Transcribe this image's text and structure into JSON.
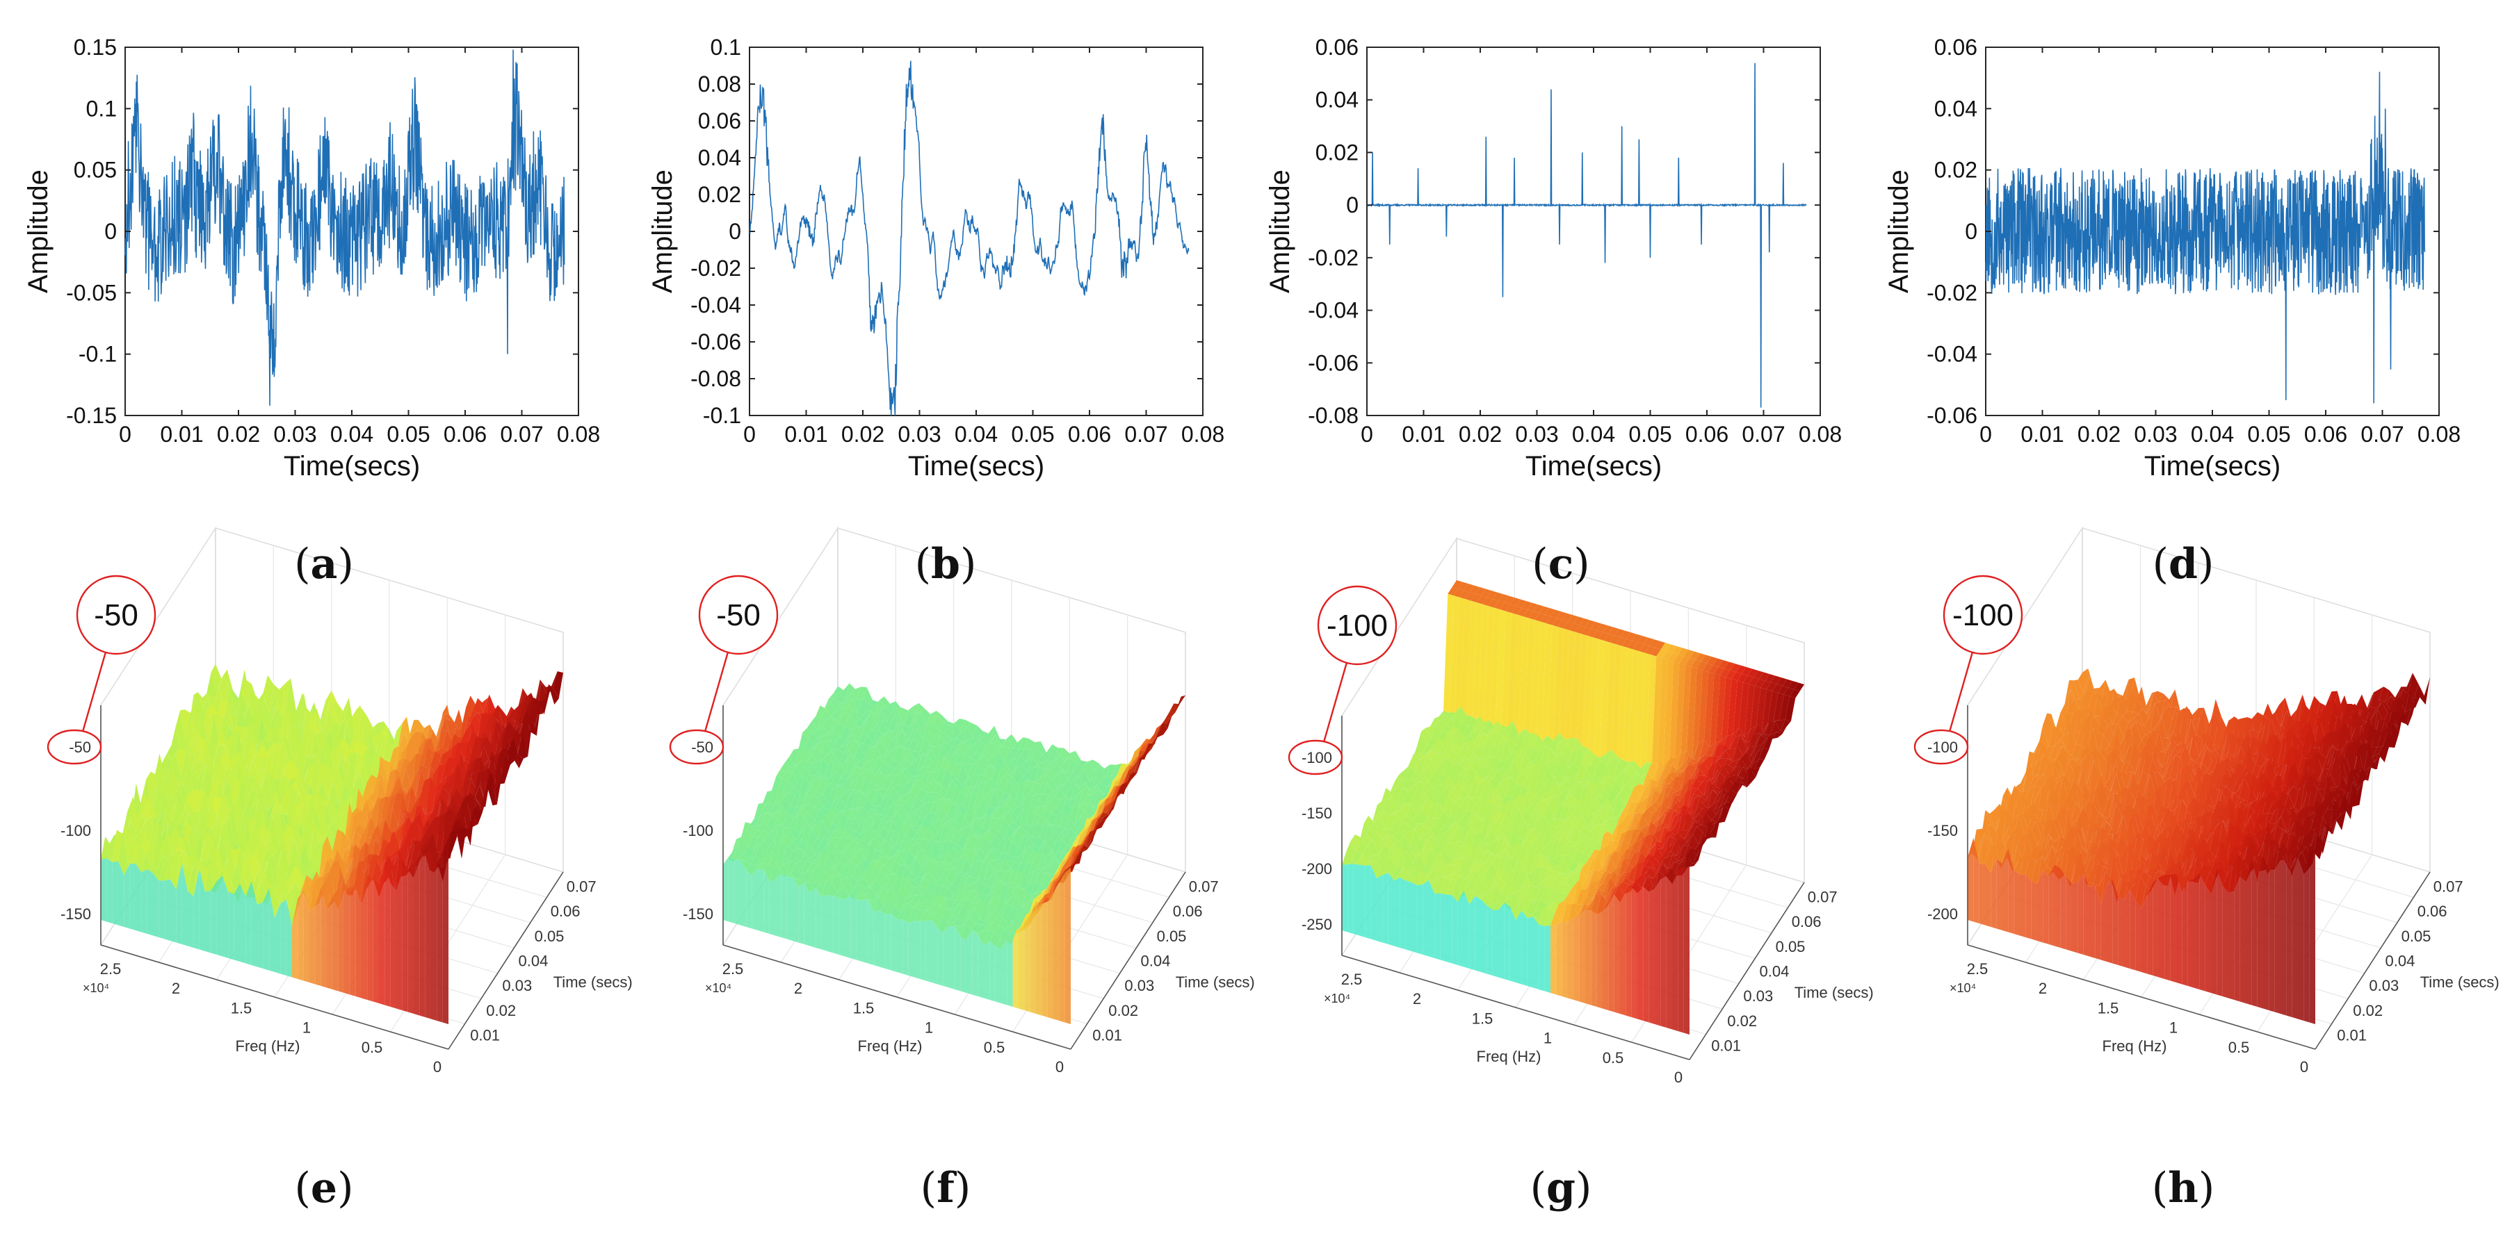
{
  "figure": {
    "panel_labels": [
      "(a)",
      "(b)",
      "(c)",
      "(d)",
      "(e)",
      "(f)",
      "(g)",
      "(h)"
    ],
    "line_color": "#1f6fb6",
    "callout_color": "#e02020"
  },
  "chart_data": [
    {
      "panel": "(a)",
      "type": "line",
      "xlabel": "Time(secs)",
      "ylabel": "Amplitude",
      "xlim": [
        0,
        0.08
      ],
      "ylim": [
        -0.15,
        0.15
      ],
      "xticks": [
        "0",
        "0.01",
        "0.02",
        "0.03",
        "0.04",
        "0.05",
        "0.06",
        "0.07",
        "0.08"
      ],
      "yticks": [
        "0.15",
        "0.1",
        "0.05",
        "0",
        "-0.05",
        "-0.1",
        "-0.15"
      ],
      "signal": {
        "duration": 0.0775,
        "mode": "noisy",
        "peak_max": 0.148,
        "peak_min": -0.142,
        "envelope": 0.055,
        "seed": 11,
        "bumps": [
          [
            0.002,
            0.085
          ],
          [
            0.012,
            0.06
          ],
          [
            0.016,
            0.05
          ],
          [
            0.022,
            0.065
          ],
          [
            0.026,
            -0.1
          ],
          [
            0.028,
            0.09
          ],
          [
            0.035,
            0.055
          ],
          [
            0.047,
            0.06
          ],
          [
            0.051,
            0.07
          ],
          [
            0.069,
            0.11
          ],
          [
            0.073,
            0.04
          ]
        ],
        "spikes": [
          [
            0.0255,
            -0.142
          ],
          [
            0.0685,
            0.148
          ],
          [
            0.0675,
            -0.1
          ]
        ]
      }
    },
    {
      "panel": "(b)",
      "type": "line",
      "xlabel": "Time(secs)",
      "ylabel": "Amplitude",
      "xlim": [
        0,
        0.08
      ],
      "ylim": [
        -0.1,
        0.1
      ],
      "xticks": [
        "0",
        "0.01",
        "0.02",
        "0.03",
        "0.04",
        "0.05",
        "0.06",
        "0.07",
        "0.08"
      ],
      "yticks": [
        "0.1",
        "0.08",
        "0.06",
        "0.04",
        "0.02",
        "0",
        "-0.02",
        "-0.04",
        "-0.06",
        "-0.08",
        "-0.1"
      ],
      "signal": {
        "duration": 0.0775,
        "mode": "smooth",
        "peak_max": 0.083,
        "peak_min": -0.092,
        "envelope": 0.045,
        "seed": 23,
        "bumps": [
          [
            0.0025,
            0.075
          ],
          [
            0.011,
            -0.04
          ],
          [
            0.022,
            -0.06
          ],
          [
            0.0255,
            -0.09
          ],
          [
            0.028,
            0.082
          ],
          [
            0.046,
            -0.045
          ],
          [
            0.062,
            0.065
          ],
          [
            0.066,
            -0.055
          ],
          [
            0.07,
            0.062
          ]
        ],
        "spikes": []
      }
    },
    {
      "panel": "(c)",
      "type": "line",
      "xlabel": "Time(secs)",
      "ylabel": "Amplitude",
      "xlim": [
        0,
        0.08
      ],
      "ylim": [
        -0.08,
        0.06
      ],
      "xticks": [
        "0",
        "0.01",
        "0.02",
        "0.03",
        "0.04",
        "0.05",
        "0.06",
        "0.07",
        "0.08"
      ],
      "yticks": [
        "0.06",
        "0.04",
        "0.02",
        "0",
        "-0.02",
        "-0.04",
        "-0.06",
        "-0.08"
      ],
      "signal": {
        "duration": 0.0775,
        "mode": "sparse",
        "peak_max": 0.054,
        "peak_min": -0.077,
        "envelope": 0.01,
        "seed": 37,
        "bumps": [],
        "spikes": [
          [
            0.001,
            0.02
          ],
          [
            0.004,
            -0.015
          ],
          [
            0.009,
            0.014
          ],
          [
            0.014,
            -0.012
          ],
          [
            0.021,
            0.026
          ],
          [
            0.024,
            -0.035
          ],
          [
            0.026,
            0.018
          ],
          [
            0.0325,
            0.044
          ],
          [
            0.034,
            -0.015
          ],
          [
            0.038,
            0.02
          ],
          [
            0.042,
            -0.022
          ],
          [
            0.045,
            0.03
          ],
          [
            0.048,
            0.025
          ],
          [
            0.05,
            -0.02
          ],
          [
            0.055,
            0.018
          ],
          [
            0.059,
            -0.015
          ],
          [
            0.0685,
            0.054
          ],
          [
            0.0695,
            -0.077
          ],
          [
            0.071,
            -0.018
          ],
          [
            0.0735,
            0.016
          ]
        ]
      }
    },
    {
      "panel": "(d)",
      "type": "line",
      "xlabel": "Time(secs)",
      "ylabel": "Amplitude",
      "xlim": [
        0,
        0.08
      ],
      "ylim": [
        -0.06,
        0.06
      ],
      "xticks": [
        "0",
        "0.01",
        "0.02",
        "0.03",
        "0.04",
        "0.05",
        "0.06",
        "0.07",
        "0.08"
      ],
      "yticks": [
        "0.06",
        "0.04",
        "0.02",
        "0",
        "-0.02",
        "-0.04",
        "-0.06"
      ],
      "signal": {
        "duration": 0.0775,
        "mode": "dense",
        "peak_max": 0.052,
        "peak_min": -0.056,
        "envelope": 0.018,
        "seed": 53,
        "bumps": [
          [
            0.069,
            0.02
          ]
        ],
        "spikes": [
          [
            0.053,
            -0.055
          ],
          [
            0.0695,
            0.052
          ],
          [
            0.0685,
            -0.056
          ],
          [
            0.0705,
            0.04
          ],
          [
            0.0715,
            -0.045
          ]
        ]
      }
    },
    {
      "panel": "(e)",
      "type": "surface3d",
      "xlabel": "Freq (Hz)",
      "ylabel": "Time (secs)",
      "x_ticks": [
        "2.5",
        "2",
        "1.5",
        "1",
        "0.5",
        "0"
      ],
      "x_multiplier": "×10⁴",
      "y_ticks": [
        "0.01",
        "0.02",
        "0.03",
        "0.04",
        "0.05",
        "0.06",
        "0.07"
      ],
      "z_ticks": [
        "-50",
        "-100",
        "-150"
      ],
      "callout": "-50",
      "palette": [
        "#3ee0d8",
        "#b8f050",
        "#f4f030",
        "#f4a030",
        "#e02818",
        "#900808"
      ],
      "surface": {
        "red_start": 0.55,
        "roughness": 0.7,
        "flat_top": false
      }
    },
    {
      "panel": "(f)",
      "type": "surface3d",
      "xlabel": "Freq (Hz)",
      "ylabel": "Time (secs)",
      "x_ticks": [
        "2.5",
        "2",
        "1.5",
        "1",
        "0.5",
        "0"
      ],
      "x_multiplier": "×10⁴",
      "y_ticks": [
        "0.01",
        "0.02",
        "0.03",
        "0.04",
        "0.05",
        "0.06",
        "0.07"
      ],
      "z_ticks": [
        "-50",
        "-100",
        "-150"
      ],
      "callout": "-50",
      "palette": [
        "#60e8c0",
        "#90f080",
        "#c8f060",
        "#f0e040",
        "#f06020",
        "#a01008"
      ],
      "surface": {
        "red_start": 0.82,
        "roughness": 0.25,
        "flat_top": false
      }
    },
    {
      "panel": "(g)",
      "type": "surface3d",
      "xlabel": "Freq (Hz)",
      "ylabel": "Time (secs)",
      "x_ticks": [
        "2.5",
        "2",
        "1.5",
        "1",
        "0.5",
        "0"
      ],
      "x_multiplier": "×10⁴",
      "y_ticks": [
        "0.01",
        "0.02",
        "0.03",
        "0.04",
        "0.05",
        "0.06",
        "0.07"
      ],
      "z_ticks": [
        "-100",
        "-150",
        "-200",
        "-250"
      ],
      "callout": "-100",
      "palette": [
        "#30e8f0",
        "#a8f060",
        "#f8f040",
        "#f8b030",
        "#e02818",
        "#900808"
      ],
      "surface": {
        "red_start": 0.6,
        "roughness": 0.3,
        "flat_top": true
      }
    },
    {
      "panel": "(h)",
      "type": "surface3d",
      "xlabel": "Freq (Hz)",
      "ylabel": "Time (secs)",
      "x_ticks": [
        "2.5",
        "2",
        "1.5",
        "1",
        "0.5",
        "0"
      ],
      "x_multiplier": "×10⁴",
      "y_ticks": [
        "0.01",
        "0.02",
        "0.03",
        "0.04",
        "0.05",
        "0.06",
        "0.07"
      ],
      "z_ticks": [
        "-100",
        "-150",
        "-200"
      ],
      "callout": "-100",
      "palette": [
        "#f8c040",
        "#f8a030",
        "#f08028",
        "#e85020",
        "#d02010",
        "#900808"
      ],
      "surface": {
        "red_start": 0.45,
        "roughness": 0.6,
        "flat_top": false
      }
    }
  ]
}
